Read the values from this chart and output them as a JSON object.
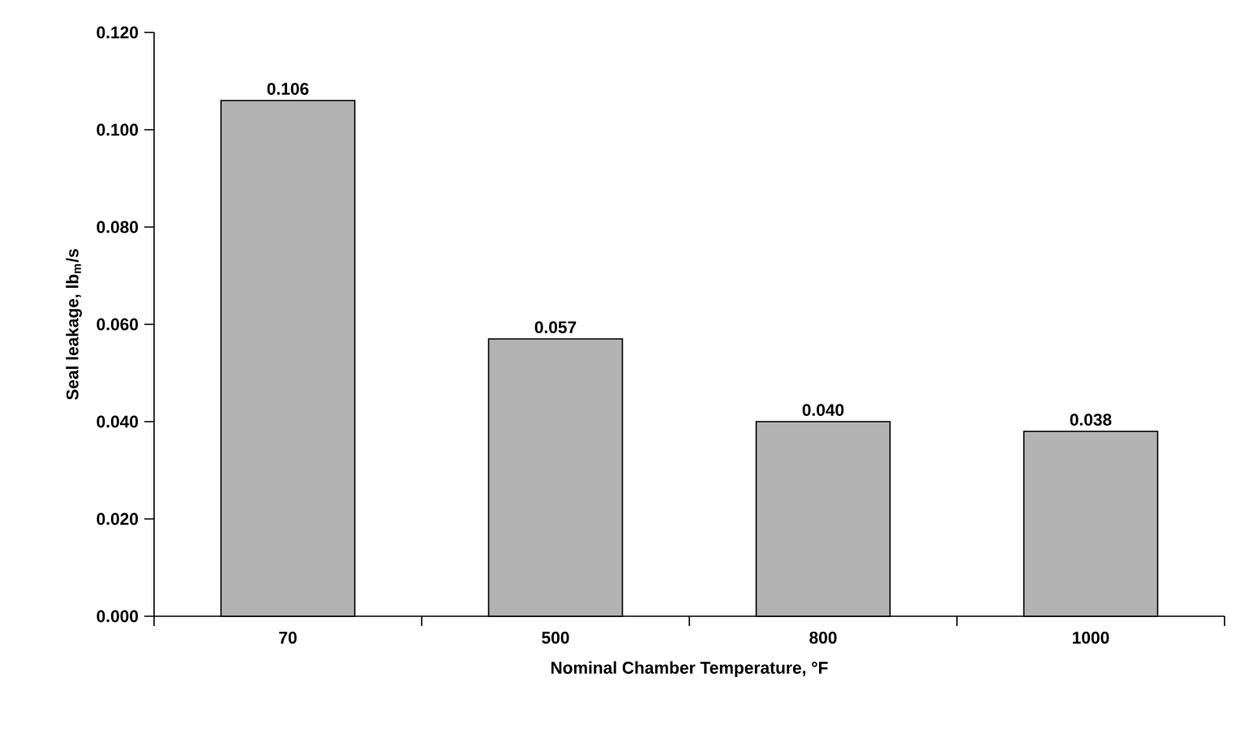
{
  "chart_data": {
    "type": "bar",
    "xlabel": "Nominal Chamber Temperature, °F",
    "ylabel": "Seal leakage, lb$_{m}$/s",
    "categories": [
      "70",
      "500",
      "800",
      "1000"
    ],
    "values": [
      0.106,
      0.057,
      0.04,
      0.038
    ],
    "value_labels": [
      "0.106",
      "0.057",
      "0.040",
      "0.038"
    ],
    "color": "#b3b3b3",
    "ylim": [
      0,
      0.12
    ],
    "yticks": [
      {
        "value": 0,
        "label": "0.000"
      },
      {
        "value": 0.02,
        "label": "0.020"
      },
      {
        "value": 0.04,
        "label": "0.040"
      },
      {
        "value": 0.06,
        "label": "0.060"
      },
      {
        "value": 0.08,
        "label": "0.080"
      },
      {
        "value": 0.1,
        "label": "0.100"
      },
      {
        "value": 0.12,
        "label": "0.120"
      }
    ],
    "grid": false
  }
}
